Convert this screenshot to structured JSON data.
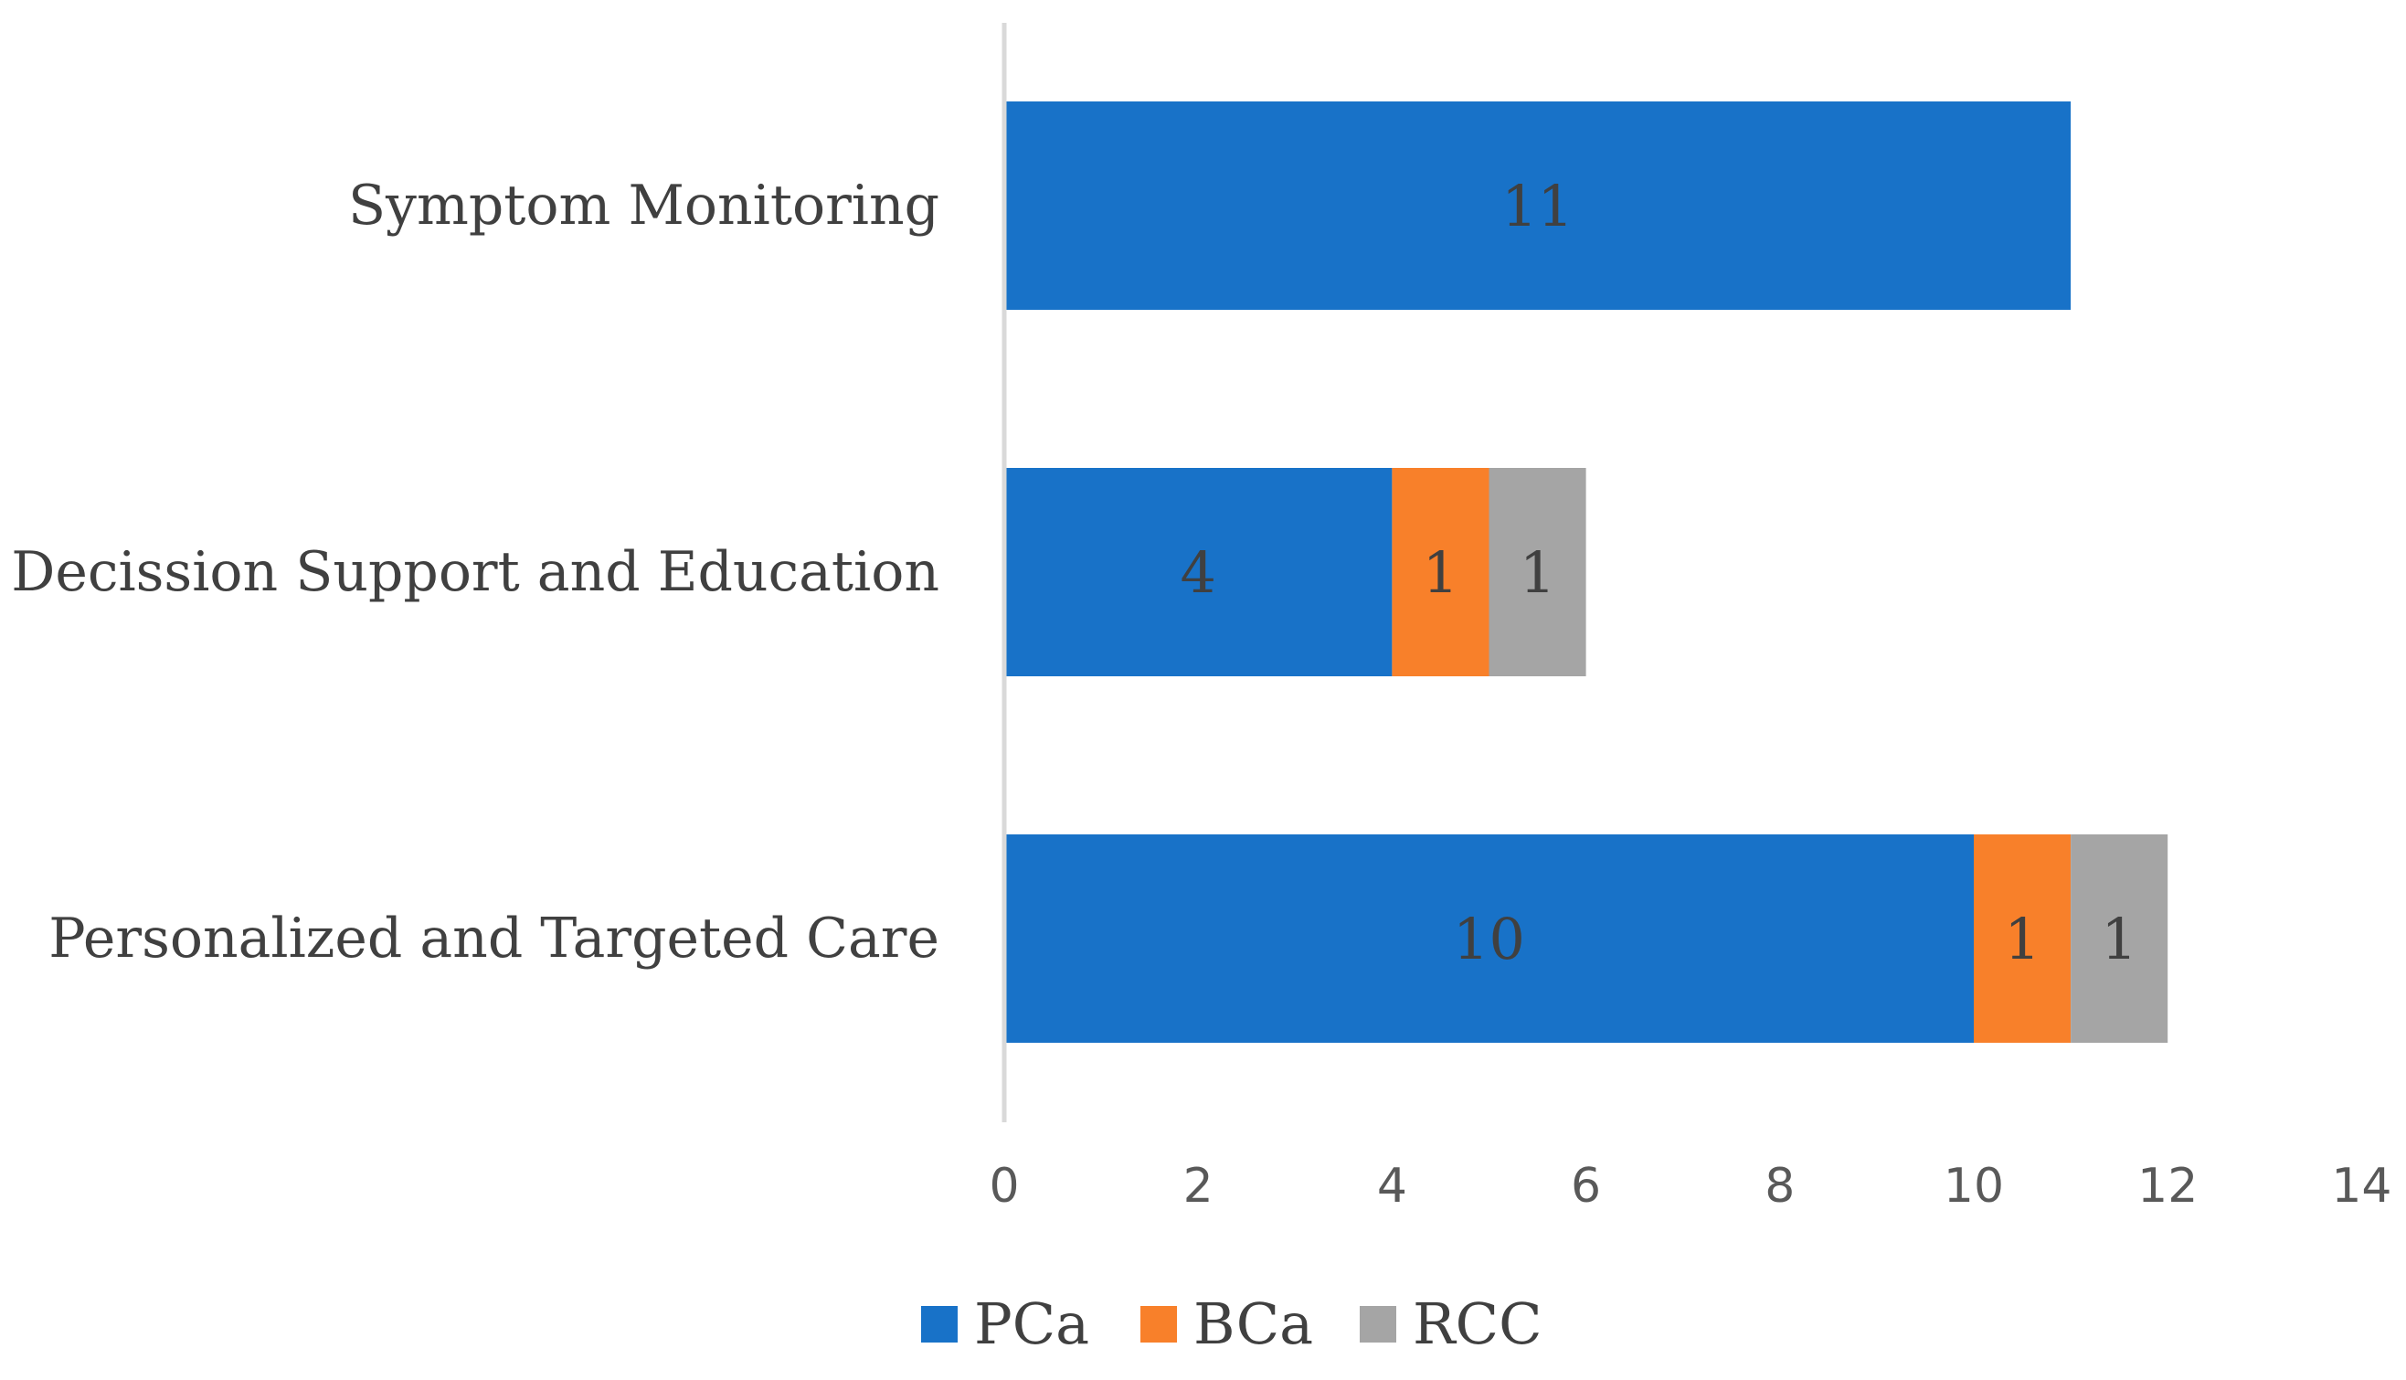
{
  "chart_data": {
    "type": "bar",
    "orientation": "horizontal",
    "stacked": true,
    "title": "",
    "xlabel": "",
    "ylabel": "",
    "categories": [
      "Symptom Monitoring",
      "Decission Support and Education",
      "Personalized and Targeted Care"
    ],
    "series": [
      {
        "name": "PCa",
        "color": "#1872c8",
        "values": [
          11,
          4,
          10
        ],
        "labels": [
          "11",
          "4",
          "10"
        ]
      },
      {
        "name": "BCa",
        "color": "#f8802a",
        "values": [
          0,
          1,
          1
        ],
        "labels": [
          "",
          "1",
          "1"
        ]
      },
      {
        "name": "RCC",
        "color": "#a5a5a5",
        "values": [
          0,
          1,
          1
        ],
        "labels": [
          "",
          "1",
          "1"
        ]
      }
    ],
    "xlim": [
      0,
      14
    ],
    "xticks": [
      0,
      2,
      4,
      6,
      8,
      10,
      12,
      14
    ],
    "xtick_labels": [
      "0",
      "2",
      "4",
      "6",
      "8",
      "10",
      "12",
      "14"
    ],
    "grid": false,
    "legend": {
      "position": "bottom",
      "entries": [
        "PCa",
        "BCa",
        "RCC"
      ]
    }
  }
}
